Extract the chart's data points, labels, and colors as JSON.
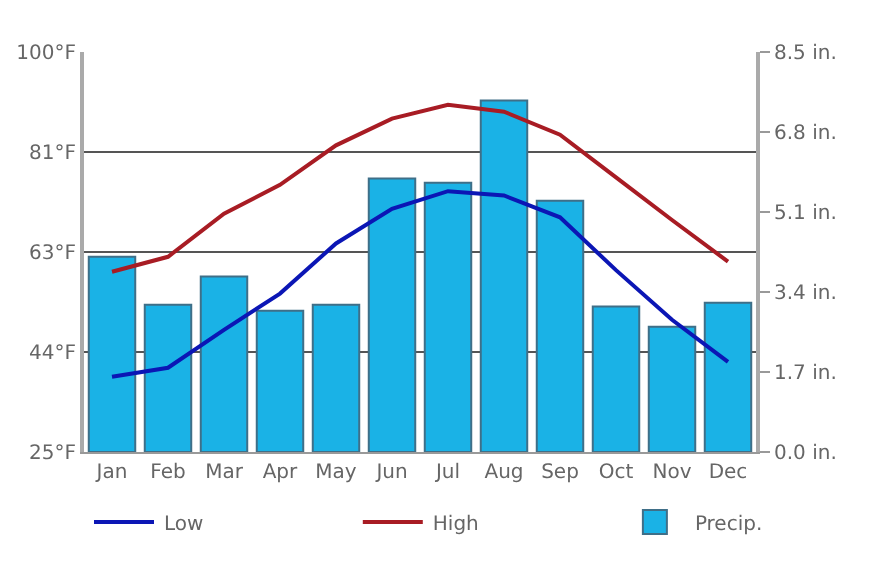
{
  "chart_data": {
    "type": "bar",
    "categories": [
      "Jan",
      "Feb",
      "Mar",
      "Apr",
      "May",
      "Jun",
      "Jul",
      "Aug",
      "Sep",
      "Oct",
      "Nov",
      "Dec"
    ],
    "series": [
      {
        "name": "Low",
        "type": "line",
        "color": "#0b16b5",
        "values": [
          39.1,
          40.8,
          47.9,
          54.7,
          64.1,
          70.6,
          73.9,
          73.1,
          69,
          59.1,
          49.8,
          41.9
        ]
      },
      {
        "name": "High",
        "type": "line",
        "color": "#a81c24",
        "values": [
          58.8,
          61.6,
          69.7,
          75.1,
          82.5,
          87.5,
          90.1,
          88.8,
          84.5,
          76.5,
          68.5,
          60.7
        ]
      },
      {
        "name": "Precip.",
        "axis": "y2",
        "color": "#1ab2e6",
        "values": [
          4.15,
          3.13,
          3.73,
          3.0,
          3.13,
          5.81,
          5.72,
          7.47,
          5.34,
          3.09,
          2.66,
          3.17
        ]
      }
    ],
    "ylim": [
      25,
      100
    ],
    "yticks": [
      {
        "value": 25,
        "label": "25°F"
      },
      {
        "value": 43.75,
        "label": "44°F"
      },
      {
        "value": 62.5,
        "label": "63°F"
      },
      {
        "value": 81.25,
        "label": "81°F"
      },
      {
        "value": 100,
        "label": "100°F"
      }
    ],
    "y2lim": [
      0,
      8.5
    ],
    "y2ticks": [
      {
        "value": 0,
        "label": "0.0 in."
      },
      {
        "value": 1.7,
        "label": "1.7 in."
      },
      {
        "value": 3.4,
        "label": "3.4 in."
      },
      {
        "value": 5.1,
        "label": "5.1 in."
      },
      {
        "value": 6.8,
        "label": "6.8 in."
      },
      {
        "value": 8.5,
        "label": "8.5 in."
      }
    ],
    "grid": "y",
    "legend": "bottom",
    "marker": "none",
    "line_style": "solid"
  }
}
